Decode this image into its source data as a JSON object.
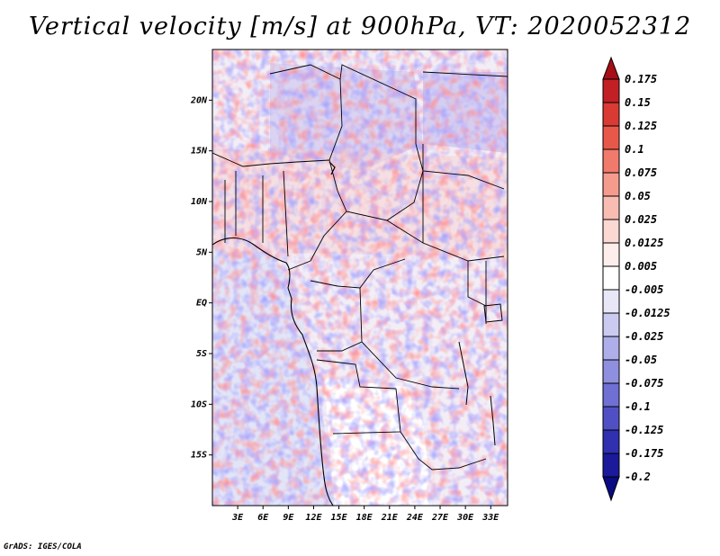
{
  "title": "Vertical velocity [m/s] at 900hPa, VT: 2020052312",
  "footer": "GrADS: IGES/COLA",
  "map": {
    "lon_range": [
      0,
      35
    ],
    "lat_range": [
      -20,
      25
    ],
    "lat_ticks": [
      {
        "value": 20,
        "label": "20N"
      },
      {
        "value": 15,
        "label": "15N"
      },
      {
        "value": 10,
        "label": "10N"
      },
      {
        "value": 5,
        "label": "5N"
      },
      {
        "value": 0,
        "label": "EQ"
      },
      {
        "value": -5,
        "label": "5S"
      },
      {
        "value": -10,
        "label": "10S"
      },
      {
        "value": -15,
        "label": "15S"
      }
    ],
    "lon_ticks": [
      {
        "value": 3,
        "label": "3E"
      },
      {
        "value": 6,
        "label": "6E"
      },
      {
        "value": 9,
        "label": "9E"
      },
      {
        "value": 12,
        "label": "12E"
      },
      {
        "value": 15,
        "label": "15E"
      },
      {
        "value": 18,
        "label": "18E"
      },
      {
        "value": 21,
        "label": "21E"
      },
      {
        "value": 24,
        "label": "24E"
      },
      {
        "value": 27,
        "label": "27E"
      },
      {
        "value": 30,
        "label": "30E"
      },
      {
        "value": 33,
        "label": "33E"
      }
    ]
  },
  "colorbar": {
    "labels": [
      "0.175",
      "0.15",
      "0.125",
      "0.1",
      "0.075",
      "0.05",
      "0.025",
      "0.0125",
      "0.005",
      "-0.005",
      "-0.0125",
      "-0.025",
      "-0.05",
      "-0.075",
      "-0.1",
      "-0.125",
      "-0.175",
      "-0.2"
    ],
    "colors": [
      "#a50f15",
      "#c22025",
      "#d93a34",
      "#e8584a",
      "#f07a6b",
      "#f49b8e",
      "#f8bcb2",
      "#fbd9d2",
      "#fdeeeb",
      "#ffffff",
      "#e7e7f8",
      "#cbcbf1",
      "#aeaeea",
      "#8f8fe0",
      "#6f6fd4",
      "#5050c4",
      "#3030b0",
      "#1a1a9a",
      "#0a0a82"
    ]
  }
}
